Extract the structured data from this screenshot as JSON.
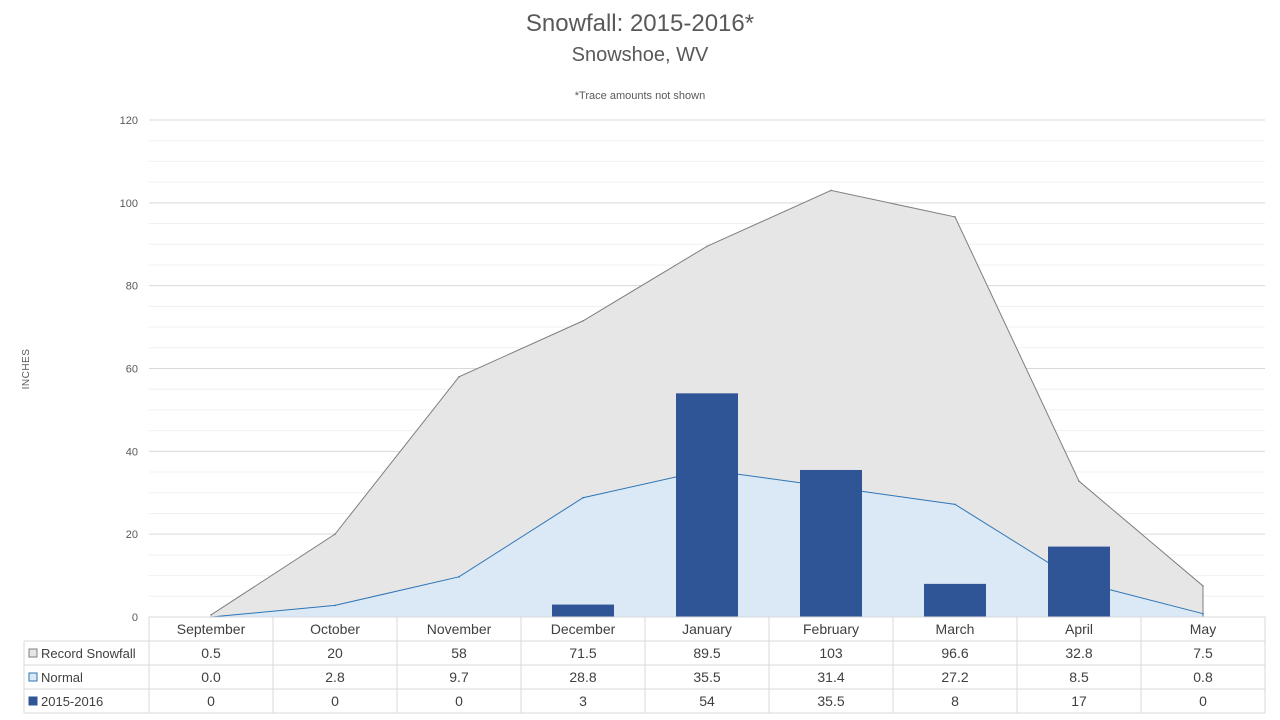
{
  "chart_data": {
    "type": "bar",
    "title": "Snowfall: 2015-2016*",
    "subtitle": "Snowshoe, WV",
    "note": "*Trace amounts not shown",
    "ylabel": "INCHES",
    "xlabel": "",
    "ylim": [
      0,
      120
    ],
    "yticks": [
      "0",
      "20",
      "40",
      "60",
      "80",
      "100",
      "120"
    ],
    "ytick_values": [
      0,
      20,
      40,
      60,
      80,
      100,
      120
    ],
    "grid": true,
    "legend": "data-table",
    "categories": [
      "September",
      "October",
      "November",
      "December",
      "January",
      "February",
      "March",
      "April",
      "May"
    ],
    "series": [
      {
        "name": "Record Snowfall",
        "kind": "area",
        "color": "#e6e6e6",
        "stroke": "#7f7f7f",
        "values": [
          0.5,
          20,
          58,
          71.5,
          89.5,
          103,
          96.6,
          32.8,
          7.5
        ],
        "labels": [
          "0.5",
          "20",
          "58",
          "71.5",
          "89.5",
          "103",
          "96.6",
          "32.8",
          "7.5"
        ]
      },
      {
        "name": "Normal",
        "kind": "area",
        "color": "#dbe8f6",
        "stroke": "#2e75b6",
        "values": [
          0.0,
          2.8,
          9.7,
          28.8,
          35.5,
          31.4,
          27.2,
          8.5,
          0.8
        ],
        "labels": [
          "0.0",
          "2.8",
          "9.7",
          "28.8",
          "35.5",
          "31.4",
          "27.2",
          "8.5",
          "0.8"
        ]
      },
      {
        "name": "2015-2016",
        "kind": "bar",
        "color": "#2f5597",
        "stroke": "#2f5597",
        "values": [
          0,
          0,
          0,
          3,
          54,
          35.5,
          8,
          17,
          0
        ],
        "labels": [
          "0",
          "0",
          "0",
          "3",
          "54",
          "35.5",
          "8",
          "17",
          "0"
        ]
      }
    ]
  }
}
